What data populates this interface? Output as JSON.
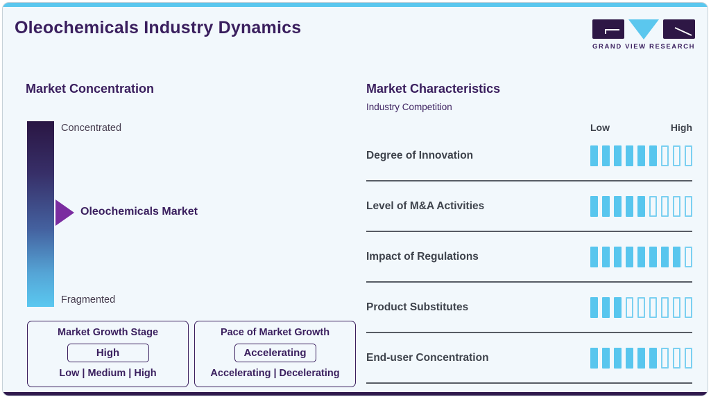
{
  "page": {
    "title": "Oleochemicals Industry Dynamics"
  },
  "logo": {
    "text": "GRAND VIEW RESEARCH"
  },
  "colors": {
    "accent_cyan": "#5bc7ee",
    "brand_purple": "#3a1f5e",
    "arrow_purple": "#7b2da0",
    "gradient_top": "#2a1643",
    "gradient_bottom": "#5ac8f0",
    "text_dark": "#3e434c",
    "divider": "#575c64"
  },
  "market_concentration": {
    "heading": "Market Concentration",
    "scale_top": "Concentrated",
    "scale_bottom": "Fragmented",
    "marker_label": "Oleochemicals Market",
    "growth_stage": {
      "title": "Market Growth Stage",
      "value": "High",
      "options": "Low | Medium | High"
    },
    "growth_pace": {
      "title": "Pace of Market Growth",
      "value": "Accelerating",
      "options": "Accelerating | Decelerating"
    }
  },
  "market_characteristics": {
    "heading": "Market Characteristics",
    "subheading": "Industry Competition",
    "scale_low": "Low",
    "scale_high": "High",
    "rows": [
      {
        "label": "Degree of Innovation",
        "filled": 6,
        "total": 9
      },
      {
        "label": "Level of M&A Activities",
        "filled": 5,
        "total": 9
      },
      {
        "label": "Impact of Regulations",
        "filled": 8,
        "total": 9
      },
      {
        "label": "Product Substitutes",
        "filled": 3,
        "total": 9
      },
      {
        "label": "End-user Concentration",
        "filled": 6,
        "total": 9
      }
    ]
  },
  "chart_data": {
    "type": "bar",
    "title": "Market Characteristics — Industry Competition",
    "categories": [
      "Degree of Innovation",
      "Level of M&A Activities",
      "Impact of Regulations",
      "Product Substitutes",
      "End-user Concentration"
    ],
    "values": [
      6,
      5,
      8,
      3,
      6
    ],
    "scale": {
      "min": 0,
      "max": 9,
      "low_label": "Low",
      "high_label": "High"
    },
    "legend_position": "none",
    "grid": false
  }
}
